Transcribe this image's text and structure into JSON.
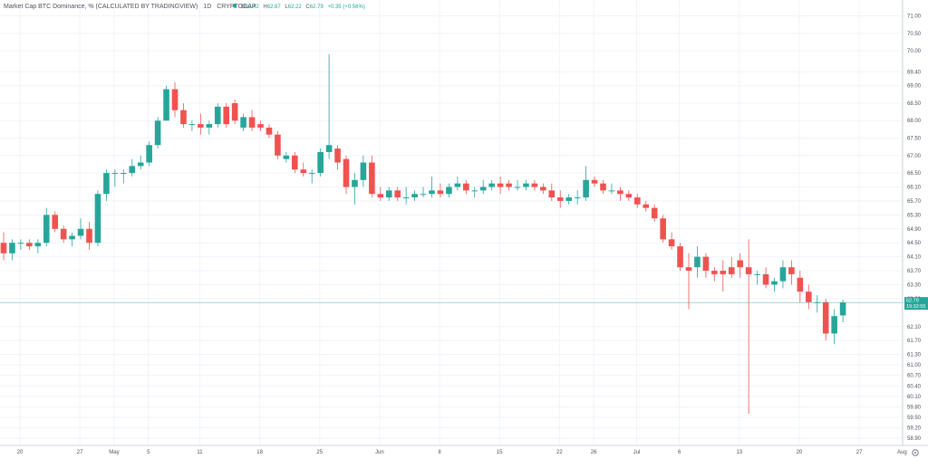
{
  "header": {
    "title": "Market Cap BTC Dominance, % (CALCULATED BY TRADINGVIEW)",
    "interval": "1D",
    "source": "CRYPTOCAP",
    "ohlc": {
      "o_label": "O",
      "o": "62.42",
      "h_label": "H",
      "h": "62.87",
      "l_label": "L",
      "l": "62.22",
      "c_label": "C",
      "c": "62.79",
      "change": "+0.35 (+0.56%)"
    }
  },
  "price_label": {
    "value": "62.79",
    "countdown": "19:32:55"
  },
  "colors": {
    "up": "#26a69a",
    "down": "#ef5350",
    "text": "#50535e",
    "grid": "#f0f3fa",
    "price_line": "#26a69a"
  },
  "chart_data": {
    "type": "candlestick",
    "title": "Market Cap BTC Dominance, % (CALCULATED BY TRADINGVIEW)",
    "ylim": [
      58.8,
      71.3
    ],
    "y_ticks": [
      "71.00",
      "70.50",
      "70.00",
      "69.40",
      "69.00",
      "68.50",
      "68.00",
      "67.50",
      "67.00",
      "66.50",
      "66.10",
      "65.70",
      "65.30",
      "64.90",
      "64.50",
      "64.10",
      "63.70",
      "63.30",
      "62.90",
      "62.10",
      "61.70",
      "61.30",
      "61.00",
      "60.70",
      "60.40",
      "60.10",
      "59.80",
      "59.50",
      "59.20",
      "58.90"
    ],
    "x_ticks": [
      {
        "label": "20",
        "day": 0
      },
      {
        "label": "27",
        "day": 7
      },
      {
        "label": "May",
        "day": 11
      },
      {
        "label": "5",
        "day": 15
      },
      {
        "label": "11",
        "day": 21
      },
      {
        "label": "18",
        "day": 28
      },
      {
        "label": "25",
        "day": 35
      },
      {
        "label": "Jun",
        "day": 42
      },
      {
        "label": "8",
        "day": 49
      },
      {
        "label": "15",
        "day": 56
      },
      {
        "label": "22",
        "day": 63
      },
      {
        "label": "26",
        "day": 67
      },
      {
        "label": "Jul",
        "day": 72
      },
      {
        "label": "6",
        "day": 77
      },
      {
        "label": "13",
        "day": 84
      },
      {
        "label": "20",
        "day": 91
      },
      {
        "label": "27",
        "day": 98
      },
      {
        "label": "Aug",
        "day": 103
      }
    ],
    "candles": [
      [
        64.5,
        64.8,
        64.0,
        64.2
      ],
      [
        64.2,
        64.6,
        64.0,
        64.5
      ],
      [
        64.5,
        64.6,
        64.3,
        64.5
      ],
      [
        64.5,
        64.6,
        64.3,
        64.4
      ],
      [
        64.4,
        64.6,
        64.2,
        64.5
      ],
      [
        64.5,
        65.5,
        64.4,
        65.3
      ],
      [
        65.3,
        65.4,
        64.8,
        64.9
      ],
      [
        64.9,
        65.0,
        64.5,
        64.6
      ],
      [
        64.6,
        64.8,
        64.4,
        64.7
      ],
      [
        64.7,
        65.2,
        64.6,
        64.9
      ],
      [
        64.9,
        65.1,
        64.3,
        64.5
      ],
      [
        64.5,
        66.0,
        64.4,
        65.9
      ],
      [
        65.9,
        66.6,
        65.7,
        66.5
      ],
      [
        66.5,
        66.6,
        66.1,
        66.5
      ],
      [
        66.5,
        66.6,
        66.2,
        66.5
      ],
      [
        66.5,
        66.9,
        66.4,
        66.7
      ],
      [
        66.7,
        67.0,
        66.6,
        66.8
      ],
      [
        66.8,
        67.4,
        66.7,
        67.3
      ],
      [
        67.3,
        68.1,
        67.2,
        68.0
      ],
      [
        68.0,
        69.0,
        68.0,
        68.9
      ],
      [
        68.9,
        69.1,
        68.1,
        68.3
      ],
      [
        68.3,
        68.5,
        67.8,
        67.9
      ],
      [
        67.9,
        68.0,
        67.7,
        67.9
      ],
      [
        67.9,
        68.2,
        67.6,
        67.8
      ],
      [
        67.8,
        68.0,
        67.6,
        67.9
      ],
      [
        67.9,
        68.5,
        67.8,
        68.4
      ],
      [
        68.4,
        68.5,
        67.8,
        67.9
      ],
      [
        68.5,
        68.6,
        67.9,
        68.0
      ],
      [
        67.8,
        68.2,
        67.7,
        68.1
      ],
      [
        68.1,
        68.3,
        67.7,
        67.8
      ],
      [
        67.9,
        68.0,
        67.7,
        67.8
      ],
      [
        67.8,
        67.9,
        67.5,
        67.6
      ],
      [
        67.6,
        67.7,
        66.9,
        67.0
      ],
      [
        66.9,
        67.1,
        66.8,
        67.0
      ],
      [
        67.0,
        67.1,
        66.5,
        66.6
      ],
      [
        66.6,
        66.8,
        66.4,
        66.5
      ],
      [
        66.5,
        66.6,
        66.2,
        66.5
      ],
      [
        66.5,
        67.2,
        66.4,
        67.1
      ],
      [
        67.1,
        69.9,
        66.9,
        67.3
      ],
      [
        67.2,
        67.3,
        66.6,
        66.8
      ],
      [
        66.9,
        67.0,
        65.9,
        66.1
      ],
      [
        66.1,
        66.5,
        65.6,
        66.3
      ],
      [
        66.3,
        67.0,
        66.1,
        66.8
      ],
      [
        66.8,
        67.0,
        65.8,
        65.9
      ],
      [
        65.9,
        66.1,
        65.7,
        65.8
      ],
      [
        65.8,
        66.1,
        65.7,
        66.0
      ],
      [
        66.0,
        66.1,
        65.7,
        65.8
      ],
      [
        65.8,
        66.1,
        65.6,
        65.8
      ],
      [
        65.8,
        66.0,
        65.7,
        65.9
      ],
      [
        65.9,
        66.1,
        65.8,
        65.9
      ],
      [
        65.9,
        66.4,
        65.8,
        66.0
      ],
      [
        66.0,
        66.2,
        65.8,
        65.9
      ],
      [
        65.9,
        66.2,
        65.8,
        66.1
      ],
      [
        66.1,
        66.4,
        66.0,
        66.2
      ],
      [
        66.2,
        66.3,
        65.9,
        66.0
      ],
      [
        66.0,
        66.1,
        65.8,
        66.0
      ],
      [
        66.0,
        66.3,
        65.9,
        66.1
      ],
      [
        66.1,
        66.3,
        66.0,
        66.2
      ],
      [
        66.2,
        66.4,
        65.9,
        66.1
      ],
      [
        66.2,
        66.3,
        66.0,
        66.1
      ],
      [
        66.1,
        66.3,
        66.0,
        66.1
      ],
      [
        66.1,
        66.3,
        66.0,
        66.2
      ],
      [
        66.2,
        66.3,
        66.0,
        66.1
      ],
      [
        66.1,
        66.2,
        65.9,
        66.0
      ],
      [
        66.0,
        66.2,
        65.7,
        65.8
      ],
      [
        65.8,
        66.0,
        65.5,
        65.7
      ],
      [
        65.7,
        65.9,
        65.6,
        65.8
      ],
      [
        65.8,
        66.0,
        65.6,
        65.8
      ],
      [
        65.8,
        66.7,
        65.7,
        66.3
      ],
      [
        66.3,
        66.4,
        66.1,
        66.2
      ],
      [
        66.2,
        66.3,
        65.9,
        66.0
      ],
      [
        66.0,
        66.2,
        65.9,
        66.0
      ],
      [
        66.0,
        66.1,
        65.7,
        65.9
      ],
      [
        65.9,
        66.0,
        65.7,
        65.8
      ],
      [
        65.8,
        65.9,
        65.5,
        65.6
      ],
      [
        65.6,
        65.7,
        65.4,
        65.5
      ],
      [
        65.5,
        65.6,
        65.1,
        65.2
      ],
      [
        65.2,
        65.3,
        64.5,
        64.6
      ],
      [
        64.6,
        64.8,
        64.3,
        64.4
      ],
      [
        64.4,
        64.5,
        63.7,
        63.8
      ],
      [
        63.8,
        64.2,
        62.6,
        63.7
      ],
      [
        63.8,
        64.4,
        63.5,
        64.1
      ],
      [
        64.1,
        64.2,
        63.5,
        63.7
      ],
      [
        63.7,
        63.8,
        63.4,
        63.6
      ],
      [
        63.7,
        64.0,
        63.1,
        63.6
      ],
      [
        63.8,
        64.1,
        63.5,
        63.6
      ],
      [
        64.0,
        64.2,
        63.5,
        63.8
      ],
      [
        63.8,
        64.6,
        59.6,
        63.6
      ],
      [
        63.6,
        63.7,
        63.3,
        63.6
      ],
      [
        63.6,
        63.8,
        63.2,
        63.3
      ],
      [
        63.3,
        63.5,
        63.1,
        63.4
      ],
      [
        63.4,
        64.0,
        63.2,
        63.8
      ],
      [
        63.8,
        64.0,
        63.3,
        63.6
      ],
      [
        63.5,
        63.7,
        62.8,
        63.1
      ],
      [
        63.1,
        63.3,
        62.6,
        62.8
      ],
      [
        62.8,
        63.0,
        62.5,
        62.8
      ],
      [
        62.8,
        62.9,
        61.7,
        61.9
      ],
      [
        61.9,
        62.6,
        61.6,
        62.4
      ],
      [
        62.42,
        62.87,
        62.22,
        62.79
      ]
    ]
  }
}
